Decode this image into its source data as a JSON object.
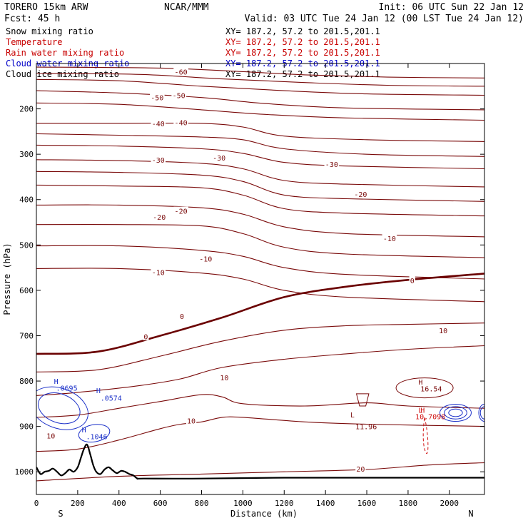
{
  "header": {
    "model": "TORERO  15km ARW",
    "center": "NCAR/MMM",
    "init": "Init: 06 UTC Sun 22 Jan 12",
    "fcst": "Fcst:   45 h",
    "valid": "Valid: 03 UTC Tue 24 Jan 12 (00 LST Tue 24 Jan 12)"
  },
  "fields": [
    {
      "name": "Snow mixing ratio",
      "xy": "XY= 187.2, 57.2 to 201.5,201.1",
      "color": "#000000"
    },
    {
      "name": "Temperature",
      "xy": "XY= 187.2, 57.2 to 201.5,201.1",
      "color": "#c80000"
    },
    {
      "name": "Rain water mixing ratio",
      "xy": "XY= 187.2, 57.2 to 201.5,201.1",
      "color": "#c80000"
    },
    {
      "name": "Cloud water mixing ratio",
      "xy": "XY= 187.2, 57.2 to 201.5,201.1",
      "color": "#0000c8"
    },
    {
      "name": "Cloud ice mixing ratio",
      "xy": "XY= 187.2, 57.2 to 201.5,201.1",
      "color": "#000000"
    }
  ],
  "chart_data": {
    "type": "line",
    "xlabel": "Distance (km)",
    "ylabel": "Pressure (hPa)",
    "xlim": [
      0,
      2170
    ],
    "ylim": [
      1050,
      100
    ],
    "xticks": [
      0,
      200,
      400,
      600,
      800,
      1000,
      1200,
      1400,
      1600,
      1800,
      2000
    ],
    "yticks": [
      200,
      300,
      400,
      500,
      600,
      700,
      800,
      900,
      1000
    ],
    "end_labels": {
      "left": "S",
      "right": "N"
    },
    "isotherm_color": "#7a0a0a",
    "zero_color": "#6a0000",
    "cloud_color": "#1a2fc8",
    "rain_color": "#d01010",
    "terrain_color": "#000000",
    "isotherms": [
      {
        "value": -60,
        "x": [
          0,
          600,
          1000,
          1300,
          1700,
          2170
        ],
        "p": [
          108,
          110,
          118,
          125,
          130,
          132
        ]
      },
      {
        "value": -60,
        "x": [
          0,
          500,
          900,
          1300,
          1700,
          2170
        ],
        "p": [
          122,
          124,
          134,
          142,
          148,
          150
        ]
      },
      {
        "value": -60,
        "x": [
          0,
          400,
          800,
          1200,
          1600,
          2170
        ],
        "p": [
          135,
          138,
          150,
          160,
          167,
          170
        ]
      },
      {
        "value": -50,
        "x": [
          0,
          400,
          800,
          1100,
          1500,
          2170
        ],
        "p": [
          160,
          165,
          175,
          188,
          198,
          202
        ]
      },
      {
        "value": -50,
        "x": [
          0,
          400,
          800,
          1100,
          1500,
          2170
        ],
        "p": [
          187,
          190,
          202,
          212,
          220,
          225
        ]
      },
      {
        "value": -40,
        "x": [
          0,
          400,
          800,
          1000,
          1200,
          1600,
          2170
        ],
        "p": [
          232,
          232,
          232,
          240,
          260,
          268,
          272
        ]
      },
      {
        "value": -40,
        "x": [
          0,
          400,
          800,
          1000,
          1200,
          1600,
          2170
        ],
        "p": [
          255,
          258,
          262,
          268,
          288,
          300,
          305
        ]
      },
      {
        "value": -30,
        "x": [
          0,
          400,
          800,
          1000,
          1200,
          1500,
          2170
        ],
        "p": [
          280,
          282,
          288,
          298,
          318,
          326,
          332
        ]
      },
      {
        "value": -30,
        "x": [
          0,
          400,
          800,
          1000,
          1200,
          1500,
          2170
        ],
        "p": [
          312,
          314,
          320,
          332,
          358,
          366,
          372
        ]
      },
      {
        "value": -30,
        "x": [
          0,
          400,
          800,
          1000,
          1200,
          1500,
          2170
        ],
        "p": [
          338,
          340,
          346,
          360,
          390,
          398,
          404
        ]
      },
      {
        "value": -20,
        "x": [
          0,
          400,
          800,
          1000,
          1200,
          1500,
          2170
        ],
        "p": [
          368,
          370,
          374,
          390,
          420,
          430,
          436
        ]
      },
      {
        "value": -20,
        "x": [
          0,
          400,
          800,
          1000,
          1200,
          1500,
          2170
        ],
        "p": [
          412,
          412,
          418,
          432,
          460,
          475,
          482
        ]
      },
      {
        "value": -10,
        "x": [
          0,
          400,
          800,
          1000,
          1200,
          1500,
          2170
        ],
        "p": [
          455,
          455,
          458,
          475,
          505,
          520,
          528
        ]
      },
      {
        "value": -10,
        "x": [
          0,
          400,
          800,
          1000,
          1200,
          1500,
          2170
        ],
        "p": [
          502,
          502,
          512,
          525,
          550,
          565,
          575
        ]
      },
      {
        "value": -10,
        "x": [
          0,
          400,
          800,
          1000,
          1200,
          1500,
          2170
        ],
        "p": [
          552,
          552,
          562,
          575,
          600,
          615,
          625
        ]
      },
      {
        "value": 0,
        "x": [
          0,
          300,
          600,
          900,
          1200,
          1500,
          1800,
          2170
        ],
        "p": [
          740,
          735,
          700,
          660,
          615,
          592,
          577,
          563
        ]
      },
      {
        "value": 10,
        "x": [
          0,
          300,
          600,
          900,
          1200,
          1500,
          1800,
          2170
        ],
        "p": [
          780,
          775,
          745,
          712,
          688,
          678,
          675,
          672
        ]
      },
      {
        "value": 10,
        "x": [
          0,
          200,
          500,
          700,
          900,
          1200,
          1500,
          1800,
          2170
        ],
        "p": [
          832,
          825,
          810,
          795,
          770,
          752,
          740,
          730,
          722
        ]
      },
      {
        "value": 10,
        "x": [
          0,
          200,
          400,
          600,
          800,
          900,
          1000,
          1300,
          1600,
          1800,
          2170
        ],
        "p": [
          880,
          875,
          860,
          845,
          830,
          835,
          850,
          855,
          848,
          855,
          860
        ]
      },
      {
        "value": 10,
        "x": [
          0,
          200,
          400,
          600,
          700,
          800,
          900,
          1000,
          1300,
          1600,
          2170
        ],
        "p": [
          955,
          950,
          930,
          905,
          895,
          890,
          880,
          880,
          890,
          895,
          900
        ]
      },
      {
        "value": 20,
        "x": [
          0,
          400,
          800,
          1200,
          1600,
          1900,
          2170
        ],
        "p": [
          1020,
          1010,
          1005,
          1000,
          995,
          985,
          980
        ]
      }
    ],
    "isotherm_labels": [
      {
        "text": "-60",
        "x": 700,
        "p": 118
      },
      {
        "text": "-50",
        "x": 585,
        "p": 175
      },
      {
        "text": "-50",
        "x": 690,
        "p": 170
      },
      {
        "text": "-40",
        "x": 590,
        "p": 232
      },
      {
        "text": "-40",
        "x": 700,
        "p": 230
      },
      {
        "text": "-30",
        "x": 1430,
        "p": 322
      },
      {
        "text": "-30",
        "x": 590,
        "p": 312
      },
      {
        "text": "-30",
        "x": 885,
        "p": 308
      },
      {
        "text": "-20",
        "x": 1570,
        "p": 388
      },
      {
        "text": "-20",
        "x": 595,
        "p": 438
      },
      {
        "text": "-20",
        "x": 700,
        "p": 425
      },
      {
        "text": "-10",
        "x": 1710,
        "p": 485
      },
      {
        "text": "-10",
        "x": 820,
        "p": 530
      },
      {
        "text": "-10",
        "x": 590,
        "p": 560
      },
      {
        "text": "0",
        "x": 1820,
        "p": 578
      },
      {
        "text": "0",
        "x": 705,
        "p": 657
      },
      {
        "text": "0",
        "x": 530,
        "p": 702
      },
      {
        "text": "10",
        "x": 1970,
        "p": 688
      },
      {
        "text": "10",
        "x": 910,
        "p": 792
      },
      {
        "text": "10",
        "x": 750,
        "p": 887
      },
      {
        "text": "10",
        "x": 70,
        "p": 920
      },
      {
        "text": "20",
        "x": 1570,
        "p": 993
      }
    ],
    "terrain": {
      "x": [
        0,
        20,
        40,
        60,
        80,
        100,
        120,
        140,
        160,
        180,
        200,
        215,
        230,
        245,
        260,
        275,
        290,
        310,
        330,
        350,
        370,
        390,
        410,
        430,
        450,
        470,
        490,
        520,
        800,
        1200,
        1600,
        2000,
        2170
      ],
      "p": [
        990,
        1005,
        1000,
        998,
        993,
        1000,
        1008,
        1003,
        995,
        1000,
        990,
        970,
        950,
        940,
        960,
        985,
        1000,
        1005,
        995,
        990,
        997,
        1003,
        998,
        1000,
        1005,
        1008,
        1015,
        1015,
        1015,
        1013,
        1013,
        1013,
        1013
      ]
    },
    "cloud_labels": [
      {
        "text": "H",
        "x": 85,
        "p": 806
      },
      {
        "text": ".0695",
        "x": 95,
        "p": 821
      },
      {
        "text": "H",
        "x": 290,
        "p": 827
      },
      {
        "text": ".0574",
        "x": 310,
        "p": 843
      },
      {
        "text": "H",
        "x": 220,
        "p": 913
      },
      {
        "text": ".1046",
        "x": 240,
        "p": 928
      }
    ],
    "rain_labels": [
      {
        "text": "L",
        "x": 1850,
        "p": 870
      },
      {
        "text": "H",
        "x": 1860,
        "p": 870
      },
      {
        "text": "10.7098",
        "x": 1835,
        "p": 884
      }
    ],
    "isotherm_extremes": [
      {
        "text": "H",
        "x": 1850,
        "p": 808
      },
      {
        "text": "16.54",
        "x": 1860,
        "p": 823
      },
      {
        "text": "L",
        "x": 1520,
        "p": 880
      },
      {
        "text": "11.96",
        "x": 1545,
        "p": 906
      }
    ]
  }
}
